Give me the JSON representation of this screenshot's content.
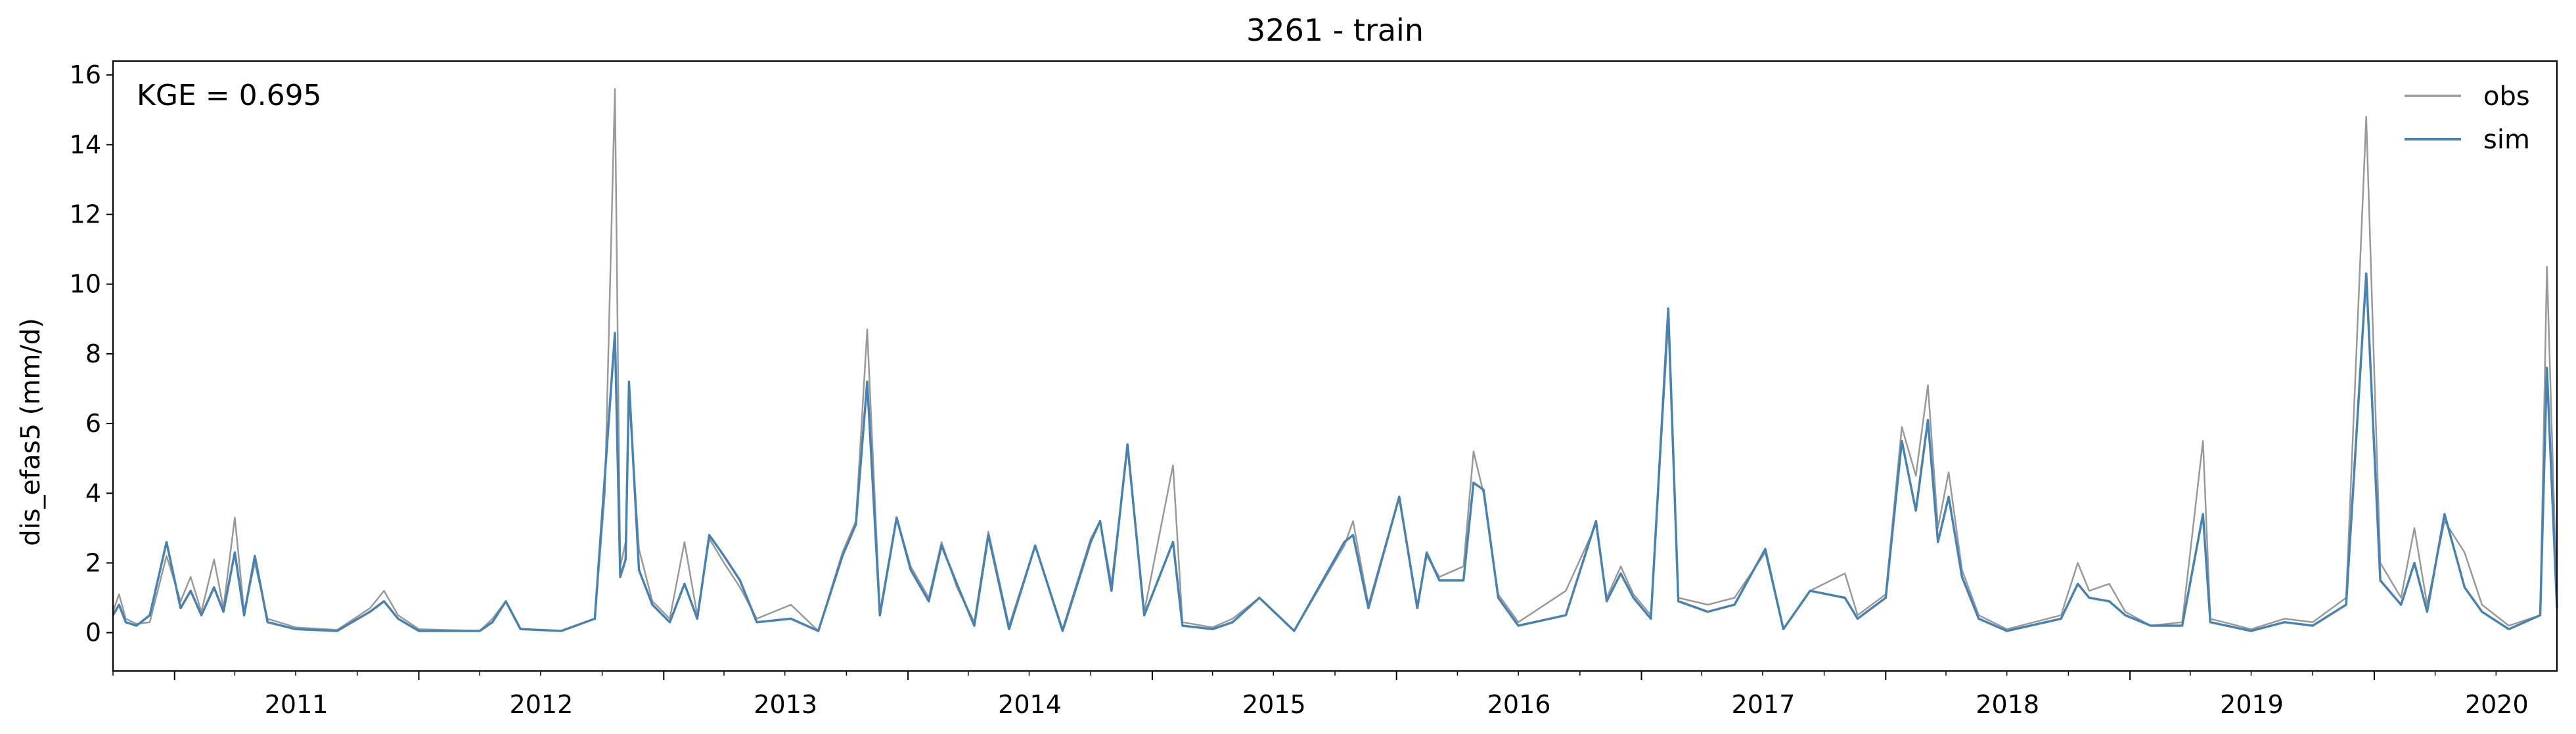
{
  "chart_data": {
    "type": "line",
    "title": "3261 - train",
    "xlabel": "",
    "ylabel": "dis_efas5 (mm/d)",
    "annotation": "KGE = 0.695",
    "legend_position": "top-right",
    "grid": false,
    "xlim": [
      "2010-10-01",
      "2020-09-30"
    ],
    "ylim": [
      -1.1,
      16.4
    ],
    "x_ticks": [
      "2011",
      "2012",
      "2013",
      "2014",
      "2015",
      "2016",
      "2017",
      "2018",
      "2019",
      "2020"
    ],
    "y_ticks": [
      "0",
      "2",
      "4",
      "6",
      "8",
      "10",
      "12",
      "14",
      "16"
    ],
    "series": [
      {
        "name": "obs",
        "color": "#999999",
        "points": [
          [
            "2010-10-01",
            0.6
          ],
          [
            "2010-10-10",
            1.1
          ],
          [
            "2010-10-20",
            0.4
          ],
          [
            "2010-11-05",
            0.25
          ],
          [
            "2010-11-25",
            0.3
          ],
          [
            "2010-12-20",
            2.2
          ],
          [
            "2011-01-10",
            0.9
          ],
          [
            "2011-01-25",
            1.6
          ],
          [
            "2011-02-10",
            0.6
          ],
          [
            "2011-03-01",
            2.1
          ],
          [
            "2011-03-15",
            0.7
          ],
          [
            "2011-04-01",
            3.3
          ],
          [
            "2011-04-15",
            0.6
          ],
          [
            "2011-05-01",
            2.0
          ],
          [
            "2011-05-20",
            0.4
          ],
          [
            "2011-07-01",
            0.15
          ],
          [
            "2011-09-01",
            0.08
          ],
          [
            "2011-10-20",
            0.7
          ],
          [
            "2011-11-10",
            1.2
          ],
          [
            "2011-12-01",
            0.5
          ],
          [
            "2012-01-01",
            0.1
          ],
          [
            "2012-04-01",
            0.05
          ],
          [
            "2012-04-20",
            0.4
          ],
          [
            "2012-05-10",
            0.9
          ],
          [
            "2012-06-01",
            0.1
          ],
          [
            "2012-08-01",
            0.05
          ],
          [
            "2012-09-20",
            0.4
          ],
          [
            "2012-10-05",
            4.0
          ],
          [
            "2012-10-20",
            15.6
          ],
          [
            "2012-10-28",
            1.9
          ],
          [
            "2012-11-05",
            2.6
          ],
          [
            "2012-11-10",
            6.8
          ],
          [
            "2012-11-25",
            2.4
          ],
          [
            "2012-12-15",
            0.9
          ],
          [
            "2013-01-10",
            0.4
          ],
          [
            "2013-02-01",
            2.6
          ],
          [
            "2013-02-20",
            0.5
          ],
          [
            "2013-03-10",
            2.7
          ],
          [
            "2013-04-01",
            2.0
          ],
          [
            "2013-04-25",
            1.3
          ],
          [
            "2013-05-20",
            0.4
          ],
          [
            "2013-07-10",
            0.8
          ],
          [
            "2013-08-20",
            0.05
          ],
          [
            "2013-09-25",
            2.3
          ],
          [
            "2013-10-15",
            3.2
          ],
          [
            "2013-11-01",
            8.7
          ],
          [
            "2013-11-20",
            0.6
          ],
          [
            "2013-12-15",
            3.3
          ],
          [
            "2014-01-05",
            1.9
          ],
          [
            "2014-02-01",
            1.0
          ],
          [
            "2014-02-20",
            2.6
          ],
          [
            "2014-03-15",
            1.3
          ],
          [
            "2014-04-10",
            0.3
          ],
          [
            "2014-05-01",
            2.9
          ],
          [
            "2014-06-01",
            0.2
          ],
          [
            "2014-07-10",
            2.5
          ],
          [
            "2014-08-20",
            0.1
          ],
          [
            "2014-10-01",
            2.7
          ],
          [
            "2014-10-15",
            3.2
          ],
          [
            "2014-11-01",
            1.4
          ],
          [
            "2014-11-25",
            5.3
          ],
          [
            "2014-12-20",
            0.6
          ],
          [
            "2015-02-01",
            4.8
          ],
          [
            "2015-02-15",
            0.3
          ],
          [
            "2015-04-01",
            0.15
          ],
          [
            "2015-05-01",
            0.4
          ],
          [
            "2015-06-10",
            1.0
          ],
          [
            "2015-08-01",
            0.05
          ],
          [
            "2015-10-15",
            2.5
          ],
          [
            "2015-10-28",
            3.2
          ],
          [
            "2015-11-20",
            0.8
          ],
          [
            "2016-01-05",
            3.9
          ],
          [
            "2016-02-01",
            0.8
          ],
          [
            "2016-02-15",
            2.2
          ],
          [
            "2016-03-05",
            1.6
          ],
          [
            "2016-04-10",
            1.9
          ],
          [
            "2016-04-25",
            5.2
          ],
          [
            "2016-05-10",
            4.0
          ],
          [
            "2016-06-01",
            1.1
          ],
          [
            "2016-07-01",
            0.3
          ],
          [
            "2016-09-10",
            1.2
          ],
          [
            "2016-10-25",
            3.1
          ],
          [
            "2016-11-10",
            1.0
          ],
          [
            "2016-12-01",
            1.9
          ],
          [
            "2016-12-20",
            1.1
          ],
          [
            "2017-01-15",
            0.5
          ],
          [
            "2017-02-10",
            8.9
          ],
          [
            "2017-02-25",
            1.0
          ],
          [
            "2017-04-10",
            0.8
          ],
          [
            "2017-05-20",
            1.0
          ],
          [
            "2017-07-05",
            2.3
          ],
          [
            "2017-08-01",
            0.1
          ],
          [
            "2017-09-10",
            1.2
          ],
          [
            "2017-11-01",
            1.7
          ],
          [
            "2017-11-20",
            0.5
          ],
          [
            "2018-01-01",
            1.1
          ],
          [
            "2018-01-25",
            5.9
          ],
          [
            "2018-02-15",
            4.5
          ],
          [
            "2018-03-05",
            7.1
          ],
          [
            "2018-03-20",
            3.0
          ],
          [
            "2018-04-05",
            4.6
          ],
          [
            "2018-04-25",
            1.8
          ],
          [
            "2018-05-20",
            0.5
          ],
          [
            "2018-07-01",
            0.1
          ],
          [
            "2018-09-20",
            0.5
          ],
          [
            "2018-10-15",
            2.0
          ],
          [
            "2018-11-01",
            1.2
          ],
          [
            "2018-12-01",
            1.4
          ],
          [
            "2018-12-25",
            0.6
          ],
          [
            "2019-02-01",
            0.2
          ],
          [
            "2019-03-20",
            0.3
          ],
          [
            "2019-04-20",
            5.5
          ],
          [
            "2019-05-01",
            0.4
          ],
          [
            "2019-07-01",
            0.1
          ],
          [
            "2019-08-20",
            0.4
          ],
          [
            "2019-10-01",
            0.3
          ],
          [
            "2019-11-20",
            1.0
          ],
          [
            "2019-12-20",
            14.8
          ],
          [
            "2020-01-10",
            2.0
          ],
          [
            "2020-02-10",
            1.0
          ],
          [
            "2020-03-01",
            3.0
          ],
          [
            "2020-03-20",
            0.8
          ],
          [
            "2020-04-15",
            3.2
          ],
          [
            "2020-05-15",
            2.3
          ],
          [
            "2020-06-10",
            0.8
          ],
          [
            "2020-07-20",
            0.2
          ],
          [
            "2020-09-05",
            0.5
          ],
          [
            "2020-09-15",
            10.5
          ],
          [
            "2020-09-30",
            0.9
          ]
        ]
      },
      {
        "name": "sim",
        "color": "#4682b4",
        "points": [
          [
            "2010-10-01",
            0.5
          ],
          [
            "2010-10-10",
            0.8
          ],
          [
            "2010-10-20",
            0.3
          ],
          [
            "2010-11-05",
            0.2
          ],
          [
            "2010-11-25",
            0.5
          ],
          [
            "2010-12-20",
            2.6
          ],
          [
            "2011-01-10",
            0.7
          ],
          [
            "2011-01-25",
            1.2
          ],
          [
            "2011-02-10",
            0.5
          ],
          [
            "2011-03-01",
            1.3
          ],
          [
            "2011-03-15",
            0.6
          ],
          [
            "2011-04-01",
            2.3
          ],
          [
            "2011-04-15",
            0.5
          ],
          [
            "2011-05-01",
            2.2
          ],
          [
            "2011-05-20",
            0.3
          ],
          [
            "2011-07-01",
            0.1
          ],
          [
            "2011-09-01",
            0.05
          ],
          [
            "2011-10-20",
            0.6
          ],
          [
            "2011-11-10",
            0.9
          ],
          [
            "2011-12-01",
            0.4
          ],
          [
            "2012-01-01",
            0.05
          ],
          [
            "2012-04-01",
            0.05
          ],
          [
            "2012-04-20",
            0.3
          ],
          [
            "2012-05-10",
            0.9
          ],
          [
            "2012-06-01",
            0.1
          ],
          [
            "2012-08-01",
            0.05
          ],
          [
            "2012-09-20",
            0.4
          ],
          [
            "2012-10-05",
            4.5
          ],
          [
            "2012-10-20",
            8.6
          ],
          [
            "2012-10-28",
            1.6
          ],
          [
            "2012-11-05",
            2.1
          ],
          [
            "2012-11-10",
            7.2
          ],
          [
            "2012-11-25",
            1.8
          ],
          [
            "2012-12-15",
            0.8
          ],
          [
            "2013-01-10",
            0.3
          ],
          [
            "2013-02-01",
            1.4
          ],
          [
            "2013-02-20",
            0.4
          ],
          [
            "2013-03-10",
            2.8
          ],
          [
            "2013-04-01",
            2.2
          ],
          [
            "2013-04-25",
            1.5
          ],
          [
            "2013-05-20",
            0.3
          ],
          [
            "2013-07-10",
            0.4
          ],
          [
            "2013-08-20",
            0.05
          ],
          [
            "2013-09-25",
            2.2
          ],
          [
            "2013-10-15",
            3.1
          ],
          [
            "2013-11-01",
            7.2
          ],
          [
            "2013-11-20",
            0.5
          ],
          [
            "2013-12-15",
            3.3
          ],
          [
            "2014-01-05",
            1.8
          ],
          [
            "2014-02-01",
            0.9
          ],
          [
            "2014-02-20",
            2.5
          ],
          [
            "2014-03-15",
            1.4
          ],
          [
            "2014-04-10",
            0.2
          ],
          [
            "2014-05-01",
            2.8
          ],
          [
            "2014-06-01",
            0.1
          ],
          [
            "2014-07-10",
            2.5
          ],
          [
            "2014-08-20",
            0.05
          ],
          [
            "2014-10-01",
            2.6
          ],
          [
            "2014-10-15",
            3.2
          ],
          [
            "2014-11-01",
            1.2
          ],
          [
            "2014-11-25",
            5.4
          ],
          [
            "2014-12-20",
            0.5
          ],
          [
            "2015-02-01",
            2.6
          ],
          [
            "2015-02-15",
            0.2
          ],
          [
            "2015-04-01",
            0.1
          ],
          [
            "2015-05-01",
            0.3
          ],
          [
            "2015-06-10",
            1.0
          ],
          [
            "2015-08-01",
            0.05
          ],
          [
            "2015-10-15",
            2.6
          ],
          [
            "2015-10-28",
            2.8
          ],
          [
            "2015-11-20",
            0.7
          ],
          [
            "2016-01-05",
            3.9
          ],
          [
            "2016-02-01",
            0.7
          ],
          [
            "2016-02-15",
            2.3
          ],
          [
            "2016-03-05",
            1.5
          ],
          [
            "2016-04-10",
            1.5
          ],
          [
            "2016-04-25",
            4.3
          ],
          [
            "2016-05-10",
            4.1
          ],
          [
            "2016-06-01",
            1.0
          ],
          [
            "2016-07-01",
            0.2
          ],
          [
            "2016-09-10",
            0.5
          ],
          [
            "2016-10-25",
            3.2
          ],
          [
            "2016-11-10",
            0.9
          ],
          [
            "2016-12-01",
            1.7
          ],
          [
            "2016-12-20",
            1.0
          ],
          [
            "2017-01-15",
            0.4
          ],
          [
            "2017-02-10",
            9.3
          ],
          [
            "2017-02-25",
            0.9
          ],
          [
            "2017-04-10",
            0.6
          ],
          [
            "2017-05-20",
            0.8
          ],
          [
            "2017-07-05",
            2.4
          ],
          [
            "2017-08-01",
            0.1
          ],
          [
            "2017-09-10",
            1.2
          ],
          [
            "2017-11-01",
            1.0
          ],
          [
            "2017-11-20",
            0.4
          ],
          [
            "2018-01-01",
            1.0
          ],
          [
            "2018-01-25",
            5.5
          ],
          [
            "2018-02-15",
            3.5
          ],
          [
            "2018-03-05",
            6.1
          ],
          [
            "2018-03-20",
            2.6
          ],
          [
            "2018-04-05",
            3.9
          ],
          [
            "2018-04-25",
            1.6
          ],
          [
            "2018-05-20",
            0.4
          ],
          [
            "2018-07-01",
            0.05
          ],
          [
            "2018-09-20",
            0.4
          ],
          [
            "2018-10-15",
            1.4
          ],
          [
            "2018-11-01",
            1.0
          ],
          [
            "2018-12-01",
            0.9
          ],
          [
            "2018-12-25",
            0.5
          ],
          [
            "2019-02-01",
            0.2
          ],
          [
            "2019-03-20",
            0.2
          ],
          [
            "2019-04-20",
            3.4
          ],
          [
            "2019-05-01",
            0.3
          ],
          [
            "2019-07-01",
            0.05
          ],
          [
            "2019-08-20",
            0.3
          ],
          [
            "2019-10-01",
            0.2
          ],
          [
            "2019-11-20",
            0.8
          ],
          [
            "2019-12-20",
            10.3
          ],
          [
            "2020-01-10",
            1.5
          ],
          [
            "2020-02-10",
            0.8
          ],
          [
            "2020-03-01",
            2.0
          ],
          [
            "2020-03-20",
            0.6
          ],
          [
            "2020-04-15",
            3.4
          ],
          [
            "2020-05-15",
            1.3
          ],
          [
            "2020-06-10",
            0.6
          ],
          [
            "2020-07-20",
            0.1
          ],
          [
            "2020-09-05",
            0.5
          ],
          [
            "2020-09-15",
            7.6
          ],
          [
            "2020-09-30",
            0.7
          ]
        ]
      }
    ]
  }
}
